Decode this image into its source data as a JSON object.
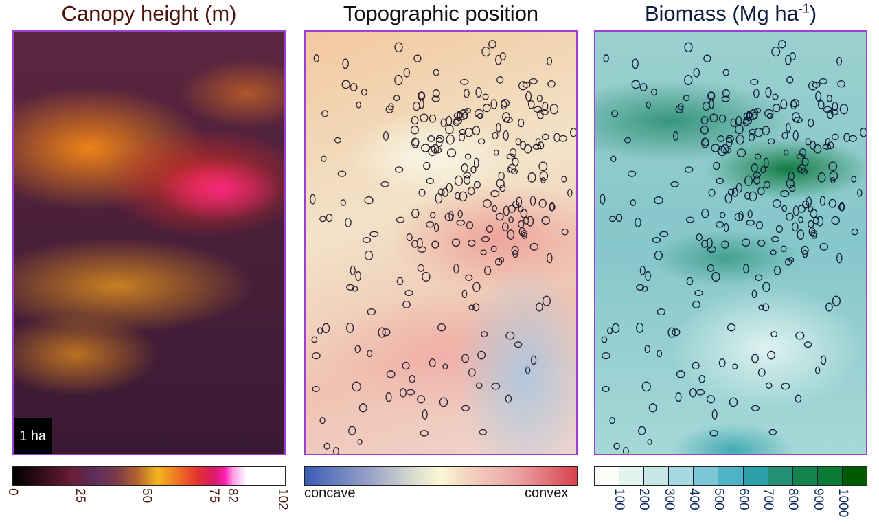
{
  "titles": {
    "canopy": "Canopy height (m)",
    "topo": "Topographic position",
    "biomass_main": "Biomass (Mg ha",
    "biomass_sup": "-1",
    "biomass_end": ")"
  },
  "scale_label": "1 ha",
  "canopy_colorbar": {
    "ticks": [
      {
        "label": "0",
        "value": 0
      },
      {
        "label": "25",
        "value": 25
      },
      {
        "label": "50",
        "value": 50
      },
      {
        "label": "75",
        "value": 75
      },
      {
        "label": "82",
        "value": 82
      },
      {
        "label": "102",
        "value": 102
      }
    ],
    "min": 0,
    "max": 102
  },
  "topo_colorbar": {
    "left_label": "concave",
    "right_label": "convex"
  },
  "biomass_colorbar": {
    "bins": [
      "#fbfdf8",
      "#e3f2ef",
      "#c7e6e4",
      "#a6d9df",
      "#7cc7d6",
      "#4fb3c8",
      "#2c9ea7",
      "#239077",
      "#16824f",
      "#0b7a36",
      "#005a00"
    ],
    "ticks": [
      {
        "label": "100",
        "value": 1
      },
      {
        "label": "200",
        "value": 2
      },
      {
        "label": "300",
        "value": 3
      },
      {
        "label": "400",
        "value": 4
      },
      {
        "label": "500",
        "value": 5
      },
      {
        "label": "600",
        "value": 6
      },
      {
        "label": "700",
        "value": 7
      },
      {
        "label": "800",
        "value": 8
      },
      {
        "label": "900",
        "value": 9
      },
      {
        "label": "1000",
        "value": 10
      }
    ],
    "bin_count": 11
  },
  "colors": {
    "panel_border": "#9b3fd6",
    "outline_topo": "#2a2030",
    "outline_biomass": "#0d1b3a"
  }
}
